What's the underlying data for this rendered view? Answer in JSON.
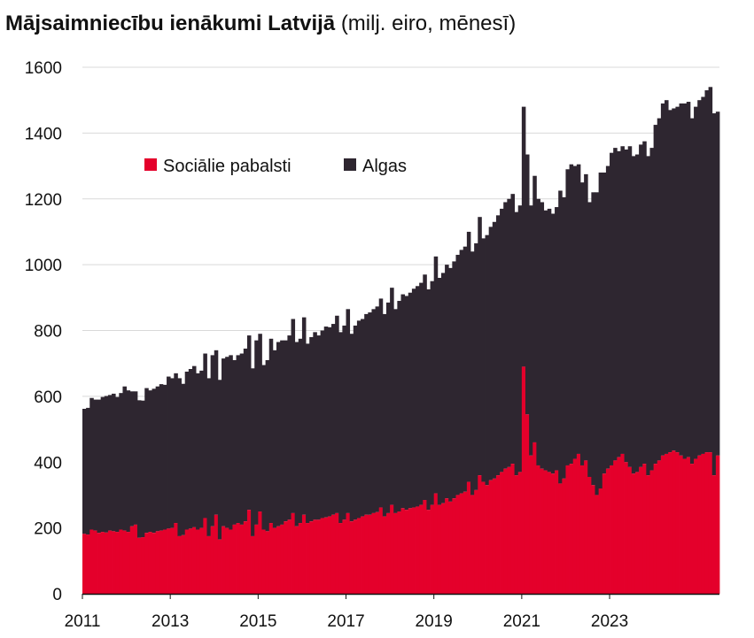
{
  "title": {
    "bold": "Mājsaimniecību ienākumi Latvijā",
    "light": "(milj. eiro, mēnesī)"
  },
  "colors": {
    "social": "#e4002b",
    "wages": "#2e2630",
    "grid": "#d9d9d9",
    "axis": "#111111",
    "text": "#111111"
  },
  "legend": {
    "placement": "top-left",
    "items": [
      "Sociālie pabalsti",
      "Algas"
    ]
  },
  "chart_data": {
    "type": "bar",
    "stacked": true,
    "y_axis": {
      "ylim": [
        0,
        1600
      ],
      "ticks": [
        0,
        200,
        400,
        600,
        800,
        1000,
        1200,
        1400,
        1600
      ],
      "tick_labels": [
        "0",
        "200",
        "400",
        "600",
        "800",
        "1000",
        "1200",
        "1400",
        "1600"
      ]
    },
    "x_axis": {
      "tick_labels": [
        "2011",
        "2013",
        "2015",
        "2017",
        "2019",
        "2021",
        "2023"
      ],
      "tick_years": [
        2011,
        2013,
        2015,
        2017,
        2019,
        2021,
        2023
      ],
      "start_month": "2011-01"
    },
    "grid": true,
    "series": [
      {
        "name": "Sociālie pabalsti",
        "color": "#e4002b",
        "values": [
          182,
          180,
          195,
          192,
          185,
          188,
          186,
          192,
          190,
          188,
          195,
          192,
          188,
          205,
          210,
          170,
          172,
          185,
          188,
          185,
          190,
          192,
          195,
          198,
          200,
          215,
          175,
          178,
          195,
          198,
          202,
          195,
          200,
          230,
          175,
          205,
          240,
          165,
          205,
          200,
          195,
          210,
          215,
          210,
          220,
          255,
          175,
          210,
          250,
          195,
          190,
          215,
          200,
          205,
          210,
          220,
          225,
          245,
          205,
          215,
          240,
          215,
          220,
          225,
          225,
          230,
          232,
          235,
          240,
          245,
          215,
          225,
          245,
          220,
          225,
          230,
          235,
          240,
          240,
          245,
          248,
          262,
          235,
          245,
          270,
          245,
          250,
          260,
          255,
          260,
          262,
          265,
          270,
          285,
          255,
          270,
          305,
          270,
          275,
          290,
          280,
          290,
          300,
          305,
          310,
          340,
          300,
          315,
          360,
          340,
          330,
          345,
          350,
          360,
          370,
          380,
          385,
          395,
          360,
          370,
          690,
          545,
          420,
          460,
          390,
          380,
          375,
          370,
          365,
          375,
          335,
          350,
          390,
          395,
          410,
          425,
          390,
          405,
          355,
          330,
          300,
          320,
          365,
          380,
          390,
          405,
          415,
          425,
          400,
          385,
          365,
          370,
          385,
          395,
          360,
          375,
          395,
          405,
          420,
          425,
          430,
          435,
          430,
          420,
          410,
          415,
          395,
          410,
          420,
          425,
          430,
          430,
          360,
          420
        ]
      },
      {
        "name": "Algas",
        "color": "#2e2630",
        "values": [
          380,
          385,
          400,
          398,
          405,
          410,
          415,
          412,
          418,
          410,
          415,
          438,
          430,
          410,
          405,
          418,
          415,
          440,
          430,
          438,
          440,
          445,
          440,
          462,
          455,
          455,
          480,
          460,
          480,
          485,
          490,
          475,
          478,
          500,
          480,
          520,
          500,
          485,
          510,
          520,
          530,
          500,
          510,
          520,
          525,
          530,
          510,
          560,
          540,
          500,
          520,
          560,
          540,
          560,
          560,
          550,
          560,
          590,
          560,
          560,
          600,
          545,
          560,
          570,
          560,
          570,
          580,
          575,
          580,
          600,
          580,
          590,
          620,
          570,
          590,
          600,
          600,
          610,
          615,
          620,
          625,
          635,
          615,
          640,
          660,
          620,
          640,
          650,
          650,
          655,
          665,
          670,
          675,
          685,
          670,
          680,
          720,
          690,
          700,
          710,
          710,
          720,
          730,
          740,
          745,
          760,
          740,
          750,
          785,
          740,
          760,
          770,
          780,
          790,
          800,
          810,
          815,
          820,
          800,
          810,
          790,
          790,
          760,
          810,
          810,
          810,
          790,
          800,
          790,
          800,
          890,
          855,
          900,
          910,
          890,
          880,
          860,
          870,
          835,
          890,
          920,
          960,
          915,
          920,
          950,
          950,
          930,
          935,
          950,
          975,
          965,
          965,
          980,
          980,
          970,
          980,
          1030,
          1040,
          1070,
          1075,
          1040,
          1040,
          1050,
          1070,
          1080,
          1080,
          1050,
          1070,
          1080,
          1085,
          1100,
          1110,
          1100,
          1045
        ]
      }
    ]
  }
}
